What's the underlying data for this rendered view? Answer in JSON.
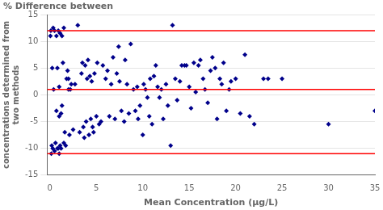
{
  "chart_data": {
    "type": "scatter",
    "xlabel": "Mean Concentration (μg/L)",
    "ylabel": "concentrations determined from\ntwo methods",
    "annotations": [
      "% Difference between"
    ],
    "x": [
      0.05,
      0.1,
      0.15,
      0.2,
      0.25,
      0.3,
      0.35,
      0.4,
      0.5,
      0.5,
      0.6,
      0.7,
      0.7,
      0.8,
      0.8,
      0.9,
      0.9,
      1.0,
      1.0,
      1.0,
      1.1,
      1.1,
      1.2,
      1.2,
      1.3,
      1.3,
      1.4,
      1.5,
      1.5,
      1.6,
      1.7,
      1.8,
      1.9,
      2.0,
      2.0,
      2.1,
      2.2,
      2.3,
      2.5,
      2.7,
      3.0,
      3.2,
      3.4,
      3.5,
      3.6,
      3.7,
      3.8,
      3.9,
      4.0,
      4.1,
      4.2,
      4.3,
      4.4,
      4.5,
      4.6,
      4.7,
      4.8,
      5.0,
      5.1,
      5.3,
      5.5,
      5.7,
      6.0,
      6.2,
      6.4,
      6.6,
      6.8,
      7.0,
      7.2,
      7.4,
      7.5,
      7.7,
      8.0,
      8.1,
      8.3,
      8.5,
      8.7,
      9.0,
      9.2,
      9.4,
      9.5,
      9.7,
      10.0,
      10.1,
      10.3,
      10.5,
      10.7,
      10.8,
      11.0,
      11.2,
      11.4,
      11.6,
      11.8,
      12.0,
      12.2,
      12.5,
      12.7,
      13.0,
      13.2,
      13.5,
      13.7,
      14.0,
      14.2,
      14.5,
      14.7,
      15.0,
      15.2,
      15.5,
      15.7,
      16.0,
      16.2,
      16.5,
      16.7,
      17.0,
      17.3,
      17.5,
      17.8,
      18.0,
      18.3,
      18.5,
      18.7,
      19.0,
      19.3,
      19.5,
      20.0,
      20.5,
      21.0,
      21.5,
      22.0,
      23.0,
      23.5,
      25.0,
      30.0,
      35.0
    ],
    "values": [
      11.0,
      12.0,
      -11.0,
      -9.5,
      5.0,
      -10.0,
      12.5,
      1.0,
      -10.5,
      12.0,
      -9.0,
      -3.0,
      11.0,
      -10.0,
      5.0,
      12.0,
      -10.0,
      -11.0,
      1.5,
      -4.0,
      -9.5,
      11.5,
      -3.5,
      -10.0,
      11.0,
      -2.0,
      6.0,
      -9.0,
      12.5,
      -7.0,
      -9.5,
      3.0,
      4.5,
      3.0,
      1.0,
      -7.5,
      1.0,
      2.0,
      -6.5,
      2.0,
      13.0,
      -7.0,
      4.0,
      6.0,
      -6.0,
      -8.0,
      5.5,
      -5.0,
      3.0,
      6.5,
      -7.5,
      3.5,
      -4.5,
      2.5,
      -6.0,
      -7.0,
      4.0,
      -4.0,
      6.0,
      -5.5,
      -5.0,
      5.5,
      3.0,
      4.5,
      -4.0,
      2.0,
      7.0,
      -4.5,
      4.0,
      9.0,
      2.5,
      -3.0,
      -5.0,
      6.5,
      2.0,
      -3.5,
      9.5,
      1.0,
      -3.0,
      1.5,
      -4.5,
      -2.0,
      -7.5,
      2.0,
      1.0,
      -0.5,
      -4.0,
      3.0,
      -5.5,
      3.5,
      5.5,
      1.5,
      -0.5,
      1.0,
      -4.5,
      2.0,
      -2.0,
      -9.5,
      13.0,
      3.0,
      -1.0,
      2.5,
      5.5,
      5.5,
      5.5,
      1.5,
      -2.5,
      6.0,
      0.5,
      5.5,
      6.5,
      3.0,
      1.0,
      -1.5,
      4.5,
      7.0,
      5.0,
      -4.5,
      3.0,
      2.0,
      6.0,
      -3.0,
      1.0,
      2.5,
      3.0,
      -3.5,
      7.5,
      -4.0,
      -5.5,
      3.0,
      3.0,
      3.0,
      -5.5,
      -3.0
    ],
    "color": "#00008B",
    "marker": "diamond",
    "reference_lines": {
      "values": [
        12.0,
        1.0,
        -11.0
      ],
      "color": "#ff0000"
    },
    "xlim": [
      -0.3,
      35
    ],
    "ylim": [
      -15,
      15
    ],
    "xticks": [
      0,
      5,
      10,
      15,
      20,
      25,
      30,
      35
    ],
    "yticks": [
      -15,
      -10,
      -5,
      0,
      5,
      10,
      15
    ],
    "grid": "y"
  }
}
